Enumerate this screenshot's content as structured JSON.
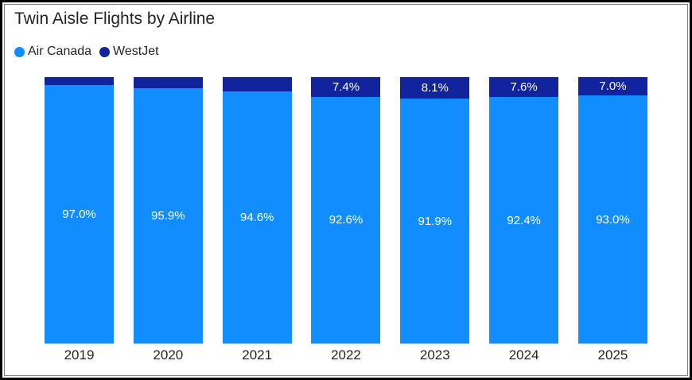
{
  "header": {
    "title": "Twin Aisle Flights by Airline"
  },
  "legend": {
    "items": [
      {
        "label": "Air Canada",
        "color": "#118DFF"
      },
      {
        "label": "WestJet",
        "color": "#12239E"
      }
    ]
  },
  "colors": {
    "air_canada": "#118DFF",
    "westjet": "#12239E",
    "label_text": "#ffffff",
    "axis_text": "#252423",
    "outer_border": "#000000",
    "inner_border": "#7f7f7f"
  },
  "chart_data": {
    "type": "bar",
    "stacked": true,
    "percent_stacked": true,
    "title": "Twin Aisle Flights by Airline",
    "categories": [
      "2019",
      "2020",
      "2021",
      "2022",
      "2023",
      "2024",
      "2025"
    ],
    "series": [
      {
        "name": "Air Canada",
        "color": "#118DFF",
        "values": [
          97.0,
          95.9,
          94.6,
          92.6,
          91.9,
          92.4,
          93.0
        ],
        "labels": [
          "97.0%",
          "95.9%",
          "94.6%",
          "92.6%",
          "91.9%",
          "92.4%",
          "93.0%"
        ]
      },
      {
        "name": "WestJet",
        "color": "#12239E",
        "values": [
          3.0,
          4.1,
          5.4,
          7.4,
          8.1,
          7.6,
          7.0
        ],
        "labels": [
          "",
          "",
          "",
          "7.4%",
          "8.1%",
          "7.6%",
          "7.0%"
        ]
      }
    ],
    "xlabel": "",
    "ylabel": "",
    "ylim": [
      0,
      100
    ],
    "grid": false,
    "legend_position": "top-left"
  }
}
